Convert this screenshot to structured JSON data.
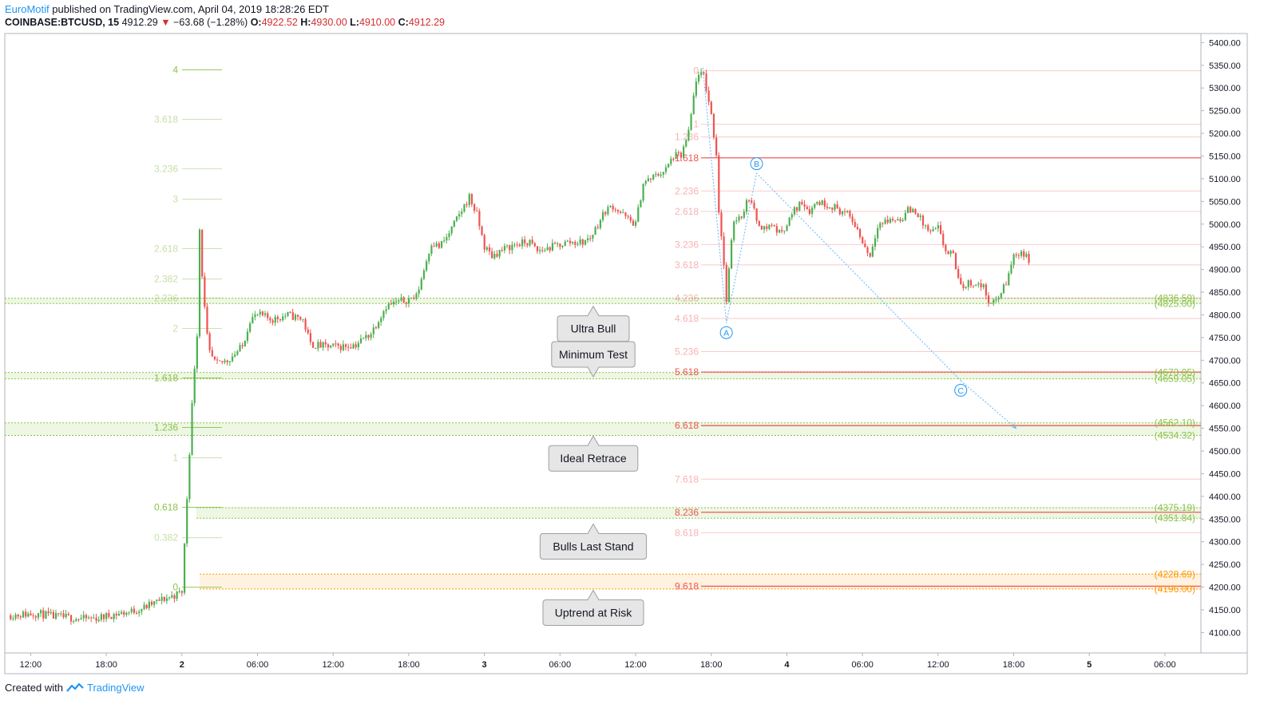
{
  "header": {
    "author": "EuroMotif",
    "published": "published on TradingView.com, April 04, 2019 18:28:26 EDT",
    "symbol": "COINBASE:BTCUSD, 15",
    "price": "4912.29",
    "change": "−63.68 (−1.28%)",
    "o_label": "O:",
    "o_value": "4922.52",
    "h_label": "H:",
    "h_value": "4930.00",
    "l_label": "L:",
    "l_value": "4910.00",
    "c_label": "C:",
    "c_value": "4912.29"
  },
  "footer": {
    "created_with": "Created with",
    "brand": "TradingView"
  },
  "colors": {
    "up": "#4caf50",
    "down": "#ef5350",
    "green_fib": "#8bc34a",
    "red_fib": "#ef5350",
    "orange": "#ff9800",
    "wave": "#64b5f6"
  },
  "chart_data": {
    "type": "candlestick",
    "ylim": [
      4055,
      5420
    ],
    "xlim": [
      0,
      157
    ],
    "x_tick_labels": [
      {
        "label": "12:00",
        "x": 3
      },
      {
        "label": "18:00",
        "x": 13
      },
      {
        "label": "2",
        "x": 23,
        "bold": true
      },
      {
        "label": "06:00",
        "x": 33
      },
      {
        "label": "12:00",
        "x": 43
      },
      {
        "label": "18:00",
        "x": 53
      },
      {
        "label": "3",
        "x": 63,
        "bold": true
      },
      {
        "label": "06:00",
        "x": 73
      },
      {
        "label": "12:00",
        "x": 83
      },
      {
        "label": "18:00",
        "x": 93
      },
      {
        "label": "4",
        "x": 103,
        "bold": true
      },
      {
        "label": "06:00",
        "x": 113
      },
      {
        "label": "12:00",
        "x": 123
      },
      {
        "label": "18:00",
        "x": 133
      },
      {
        "label": "5",
        "x": 143,
        "bold": true
      },
      {
        "label": "06:00",
        "x": 153
      }
    ],
    "y_tick_labels": [
      "5400.00",
      "5350.00",
      "5300.00",
      "5250.00",
      "5200.00",
      "5150.00",
      "5100.00",
      "5050.00",
      "5000.00",
      "4950.00",
      "4900.00",
      "4850.00",
      "4800.00",
      "4750.00",
      "4700.00",
      "4650.00",
      "4600.00",
      "4550.00",
      "4500.00",
      "4450.00",
      "4400.00",
      "4350.00",
      "4300.00",
      "4250.00",
      "4200.00",
      "4150.00",
      "4100.00"
    ],
    "y_tick_values": [
      5400,
      5350,
      5300,
      5250,
      5200,
      5150,
      5100,
      5050,
      5000,
      4950,
      4900,
      4850,
      4800,
      4750,
      4700,
      4650,
      4600,
      4550,
      4500,
      4450,
      4400,
      4350,
      4300,
      4250,
      4200,
      4150,
      4100
    ],
    "close_path": [
      [
        0,
        4138
      ],
      [
        2,
        4140
      ],
      [
        4,
        4142
      ],
      [
        6,
        4135
      ],
      [
        8,
        4133
      ],
      [
        10,
        4130
      ],
      [
        12,
        4132
      ],
      [
        14,
        4140
      ],
      [
        16,
        4145
      ],
      [
        18,
        4155
      ],
      [
        20,
        4170
      ],
      [
        22,
        4182
      ],
      [
        23,
        4190
      ],
      [
        24,
        4500
      ],
      [
        24.5,
        4650
      ],
      [
        25,
        4760
      ],
      [
        25.3,
        5000
      ],
      [
        25.8,
        4850
      ],
      [
        26.5,
        4720
      ],
      [
        27.5,
        4690
      ],
      [
        29,
        4700
      ],
      [
        31,
        4730
      ],
      [
        32,
        4790
      ],
      [
        33,
        4800
      ],
      [
        35,
        4790
      ],
      [
        37,
        4800
      ],
      [
        39,
        4790
      ],
      [
        40,
        4735
      ],
      [
        42,
        4730
      ],
      [
        44,
        4730
      ],
      [
        46,
        4735
      ],
      [
        48,
        4760
      ],
      [
        50,
        4820
      ],
      [
        52,
        4830
      ],
      [
        54,
        4840
      ],
      [
        55,
        4900
      ],
      [
        56,
        4960
      ],
      [
        57,
        4950
      ],
      [
        58,
        4970
      ],
      [
        60,
        5030
      ],
      [
        61,
        5060
      ],
      [
        62,
        5020
      ],
      [
        63,
        4950
      ],
      [
        64,
        4930
      ],
      [
        65,
        4940
      ],
      [
        67,
        4955
      ],
      [
        69,
        4960
      ],
      [
        70,
        4940
      ],
      [
        72,
        4950
      ],
      [
        74,
        4960
      ],
      [
        76,
        4960
      ],
      [
        77,
        4970
      ],
      [
        79,
        5030
      ],
      [
        80,
        5040
      ],
      [
        82,
        5010
      ],
      [
        83,
        5000
      ],
      [
        84,
        5090
      ],
      [
        86,
        5110
      ],
      [
        87,
        5120
      ],
      [
        88,
        5150
      ],
      [
        89,
        5150
      ],
      [
        90,
        5200
      ],
      [
        91,
        5320
      ],
      [
        92,
        5330
      ],
      [
        93,
        5240
      ],
      [
        93.7,
        5150
      ],
      [
        94,
        5030
      ],
      [
        94.5,
        4950
      ],
      [
        95,
        4830
      ],
      [
        95.5,
        4930
      ],
      [
        96,
        5010
      ],
      [
        97,
        5020
      ],
      [
        98,
        5060
      ],
      [
        99,
        5010
      ],
      [
        100,
        4990
      ],
      [
        101,
        5000
      ],
      [
        102,
        4980
      ],
      [
        103,
        5000
      ],
      [
        104,
        5030
      ],
      [
        105,
        5050
      ],
      [
        106,
        5030
      ],
      [
        107,
        5050
      ],
      [
        109,
        5040
      ],
      [
        110,
        5030
      ],
      [
        111,
        5020
      ],
      [
        112,
        5000
      ],
      [
        113,
        4960
      ],
      [
        114,
        4930
      ],
      [
        115,
        5000
      ],
      [
        117,
        5010
      ],
      [
        118,
        5010
      ],
      [
        119,
        5030
      ],
      [
        120,
        5030
      ],
      [
        121,
        5000
      ],
      [
        122,
        4980
      ],
      [
        123,
        4990
      ],
      [
        124,
        4940
      ],
      [
        125,
        4930
      ],
      [
        126,
        4860
      ],
      [
        127,
        4870
      ],
      [
        128,
        4870
      ],
      [
        129,
        4860
      ],
      [
        130,
        4820
      ],
      [
        131,
        4840
      ],
      [
        132,
        4870
      ],
      [
        133,
        4930
      ],
      [
        134,
        4940
      ],
      [
        135,
        4920
      ]
    ],
    "fib_green": [
      {
        "label": "4",
        "y": 5340
      },
      {
        "label": "3.618",
        "y": 5231
      },
      {
        "label": "3.236",
        "y": 5122
      },
      {
        "label": "3",
        "y": 5055
      },
      {
        "label": "2.618",
        "y": 4946
      },
      {
        "label": "2.382",
        "y": 4879
      },
      {
        "label": "2.236",
        "y": 4837
      },
      {
        "label": "2",
        "y": 4770
      },
      {
        "label": "1.618",
        "y": 4661
      },
      {
        "label": "1.236",
        "y": 4552
      },
      {
        "label": "1",
        "y": 4485
      },
      {
        "label": "0.618",
        "y": 4376
      },
      {
        "label": "0.382",
        "y": 4309
      },
      {
        "label": "0",
        "y": 4200
      }
    ],
    "fib_red": [
      {
        "label": "0",
        "y": 5338
      },
      {
        "label": "1",
        "y": 5220
      },
      {
        "label": "1.236",
        "y": 5192
      },
      {
        "label": "1.618",
        "y": 5146
      },
      {
        "label": "2.236",
        "y": 5073
      },
      {
        "label": "2.618",
        "y": 5028
      },
      {
        "label": "3.236",
        "y": 4955
      },
      {
        "label": "3.618",
        "y": 4910
      },
      {
        "label": "4.236",
        "y": 4837
      },
      {
        "label": "4.618",
        "y": 4792
      },
      {
        "label": "5.236",
        "y": 4719
      },
      {
        "label": "5.618",
        "y": 4674
      },
      {
        "label": "6.618",
        "y": 4556
      },
      {
        "label": "7.618",
        "y": 4438
      },
      {
        "label": "8.236",
        "y": 4365
      },
      {
        "label": "8.618",
        "y": 4320
      },
      {
        "label": "9.618",
        "y": 4202
      }
    ],
    "zones": [
      {
        "top": 4836.59,
        "bottom": 4825.0,
        "color": "green",
        "top_label": "(4836.59)",
        "bottom_label": "(4825.00)"
      },
      {
        "top": 4673.05,
        "bottom": 4659.05,
        "color": "green",
        "top_label": "(4673.05)",
        "bottom_label": "(4659.05)"
      },
      {
        "top": 4562.1,
        "bottom": 4534.32,
        "color": "green",
        "top_label": "(4562.10)",
        "bottom_label": "(4534.32)"
      },
      {
        "top": 4375.19,
        "bottom": 4351.84,
        "color": "green",
        "top_label": "(4375.19)",
        "bottom_label": "(4351.84)"
      },
      {
        "top": 4228.69,
        "bottom": 4196.0,
        "color": "orange",
        "top_label": "(4228.69)",
        "bottom_label": "(4196.00)"
      }
    ],
    "waves": [
      {
        "label": "A",
        "x": 95,
        "y": 4782
      },
      {
        "label": "B",
        "x": 99,
        "y": 5112
      },
      {
        "label": "C",
        "x": 126,
        "y": 4655
      }
    ],
    "callouts": [
      {
        "text": "Ultra Bull",
        "y": 4798,
        "arrow": "up"
      },
      {
        "text": "Minimum Test",
        "y": 4741,
        "arrow": "down"
      },
      {
        "text": "Ideal Retrace",
        "y": 4512,
        "arrow": "up"
      },
      {
        "text": "Bulls Last Stand",
        "y": 4318,
        "arrow": "up"
      },
      {
        "text": "Uptrend at Risk",
        "y": 4172,
        "arrow": "up"
      }
    ]
  }
}
